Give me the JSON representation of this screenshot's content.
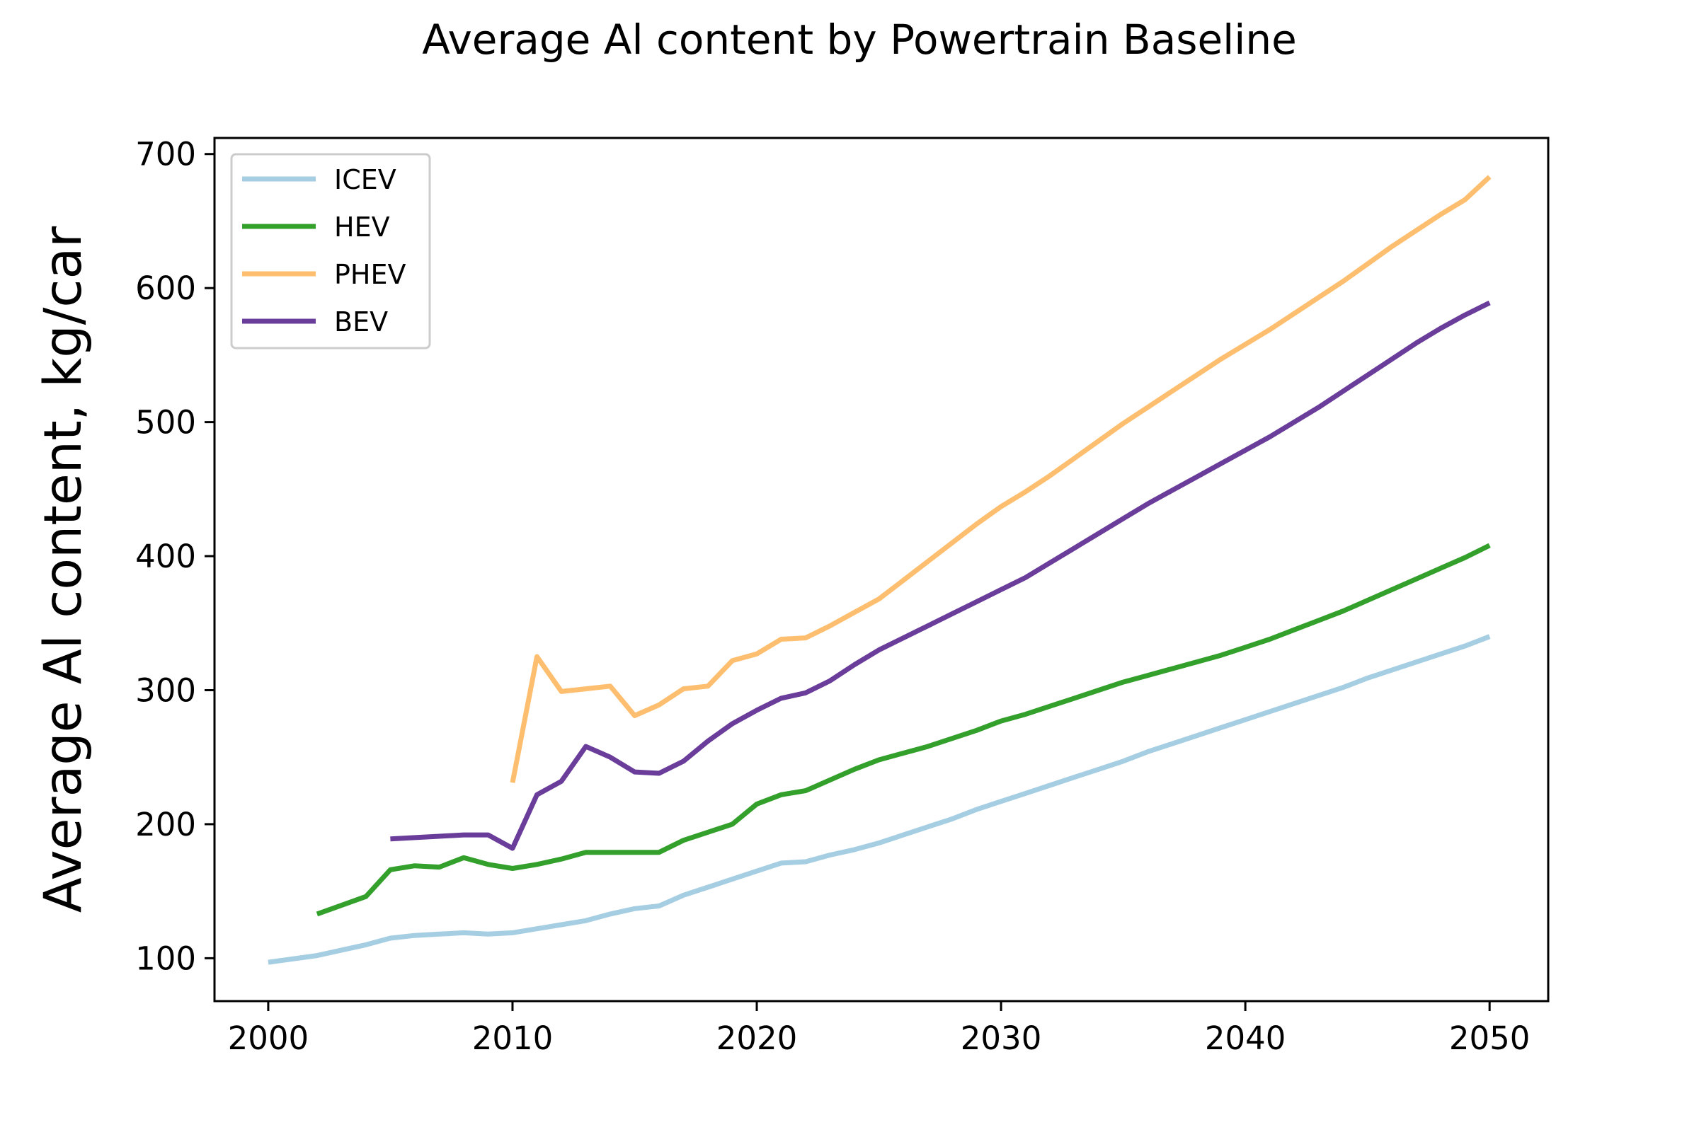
{
  "chart_data": {
    "type": "line",
    "title": "Average Al content by Powertrain Baseline",
    "xlabel": "",
    "ylabel": "Average Al content, kg/car",
    "xlim": [
      1997.8,
      2052.4
    ],
    "ylim": [
      68,
      712
    ],
    "x_ticks": [
      "2000",
      "2010",
      "2020",
      "2030",
      "2040",
      "2050"
    ],
    "y_ticks": [
      "100",
      "200",
      "300",
      "400",
      "500",
      "600",
      "700"
    ],
    "grid": false,
    "legend": {
      "position": "top-left"
    },
    "series": [
      {
        "name": "ICEV",
        "color": "#a6cee3",
        "x": [
          2000,
          2002,
          2004,
          2005,
          2006,
          2007,
          2008,
          2009,
          2010,
          2011,
          2012,
          2013,
          2014,
          2015,
          2016,
          2017,
          2018,
          2019,
          2020,
          2021,
          2022,
          2023,
          2024,
          2025,
          2026,
          2027,
          2028,
          2029,
          2030,
          2031,
          2032,
          2033,
          2034,
          2035,
          2036,
          2037,
          2038,
          2039,
          2040,
          2041,
          2042,
          2043,
          2044,
          2045,
          2046,
          2047,
          2048,
          2049,
          2050
        ],
        "values": [
          97,
          102,
          110,
          115,
          117,
          118,
          119,
          118,
          119,
          122,
          125,
          128,
          133,
          137,
          139,
          147,
          153,
          159,
          165,
          171,
          172,
          177,
          181,
          186,
          192,
          198,
          204,
          211,
          217,
          223,
          229,
          235,
          241,
          247,
          254,
          260,
          266,
          272,
          278,
          284,
          290,
          296,
          302,
          309,
          315,
          321,
          327,
          333,
          340
        ]
      },
      {
        "name": "HEV",
        "color": "#33a02c",
        "x": [
          2002,
          2004,
          2005,
          2006,
          2007,
          2008,
          2009,
          2010,
          2011,
          2012,
          2013,
          2014,
          2015,
          2016,
          2017,
          2018,
          2019,
          2020,
          2021,
          2022,
          2023,
          2024,
          2025,
          2026,
          2027,
          2028,
          2029,
          2030,
          2031,
          2032,
          2033,
          2034,
          2035,
          2036,
          2037,
          2038,
          2039,
          2040,
          2041,
          2042,
          2043,
          2044,
          2045,
          2046,
          2047,
          2048,
          2049,
          2050
        ],
        "values": [
          133,
          146,
          166,
          169,
          168,
          175,
          170,
          167,
          170,
          174,
          179,
          179,
          179,
          179,
          188,
          194,
          200,
          215,
          222,
          225,
          233,
          241,
          248,
          253,
          258,
          264,
          270,
          277,
          282,
          288,
          294,
          300,
          306,
          311,
          316,
          321,
          326,
          332,
          338,
          345,
          352,
          359,
          367,
          375,
          383,
          391,
          399,
          408
        ]
      },
      {
        "name": "PHEV",
        "color": "#fdbf6f",
        "x": [
          2010,
          2011,
          2012,
          2013,
          2014,
          2015,
          2016,
          2017,
          2018,
          2019,
          2020,
          2021,
          2022,
          2023,
          2024,
          2025,
          2026,
          2027,
          2028,
          2029,
          2030,
          2031,
          2032,
          2033,
          2034,
          2035,
          2036,
          2037,
          2038,
          2039,
          2040,
          2041,
          2042,
          2043,
          2044,
          2045,
          2046,
          2047,
          2048,
          2049,
          2050
        ],
        "values": [
          231,
          325,
          299,
          301,
          303,
          281,
          289,
          301,
          303,
          322,
          327,
          338,
          339,
          348,
          358,
          368,
          382,
          396,
          410,
          424,
          437,
          448,
          460,
          473,
          486,
          499,
          511,
          523,
          535,
          547,
          558,
          569,
          581,
          593,
          605,
          618,
          631,
          643,
          655,
          666,
          683
        ]
      },
      {
        "name": "BEV",
        "color": "#6a3d9a",
        "x": [
          2005,
          2006,
          2007,
          2008,
          2009,
          2010,
          2011,
          2012,
          2013,
          2014,
          2015,
          2016,
          2017,
          2018,
          2019,
          2020,
          2021,
          2022,
          2023,
          2024,
          2025,
          2026,
          2027,
          2028,
          2029,
          2030,
          2031,
          2032,
          2033,
          2034,
          2035,
          2036,
          2037,
          2038,
          2039,
          2040,
          2041,
          2042,
          2043,
          2044,
          2045,
          2046,
          2047,
          2048,
          2049,
          2050
        ],
        "values": [
          189,
          190,
          191,
          192,
          192,
          182,
          222,
          232,
          258,
          250,
          239,
          238,
          247,
          262,
          275,
          285,
          294,
          298,
          307,
          319,
          330,
          339,
          348,
          357,
          366,
          375,
          384,
          395,
          406,
          417,
          428,
          439,
          449,
          459,
          469,
          479,
          489,
          500,
          511,
          523,
          535,
          547,
          559,
          570,
          580,
          589
        ]
      }
    ]
  }
}
